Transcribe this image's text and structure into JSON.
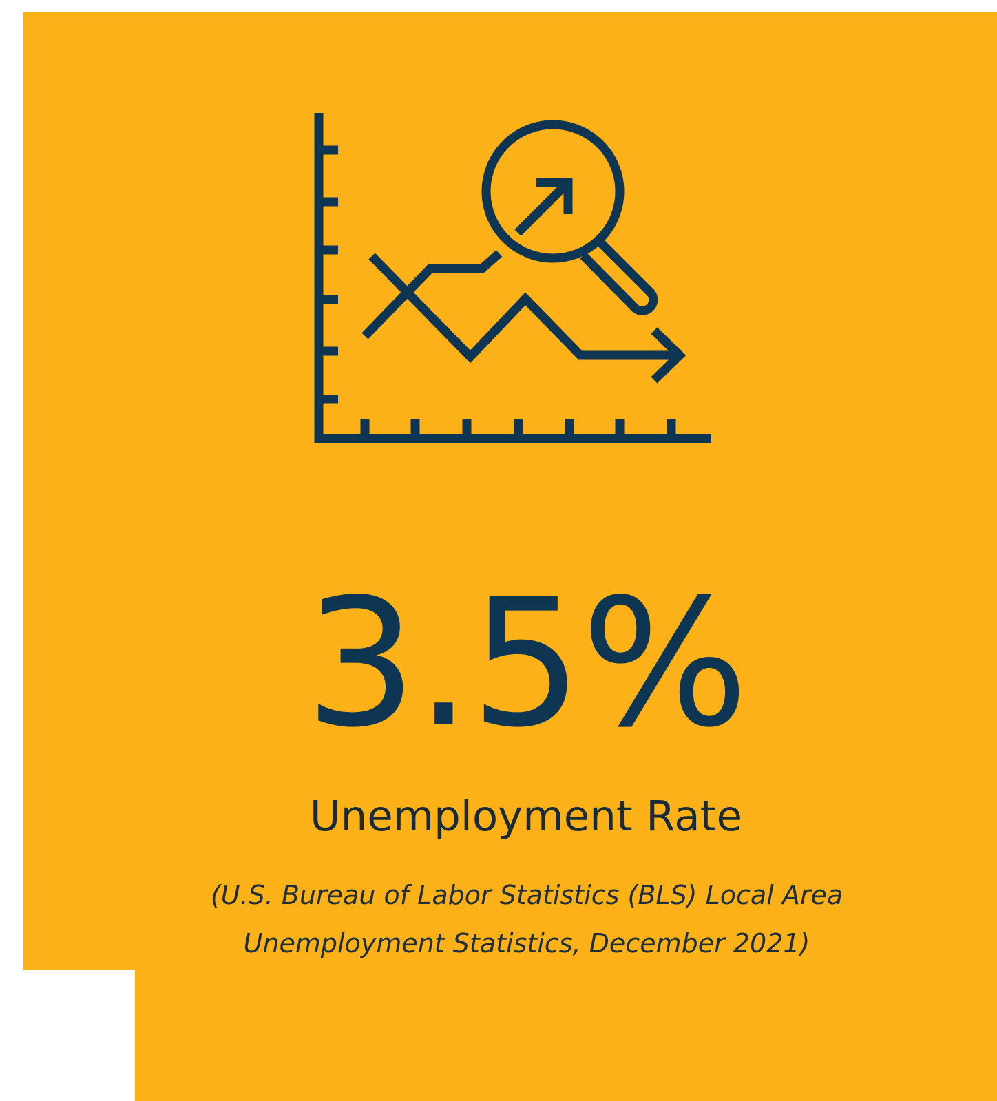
{
  "stat": {
    "value": "3.5%",
    "label": "Unemployment Rate",
    "source": "(U.S. Bureau of Labor Statistics (BLS) Local Area Unemployment Statistics, December 2021)",
    "icon": "chart-magnifier-icon"
  },
  "colors": {
    "card_background": "#FBB117",
    "icon_stroke": "#0E3551",
    "value_text": "#0E3551",
    "page_background": "#ffffff"
  }
}
